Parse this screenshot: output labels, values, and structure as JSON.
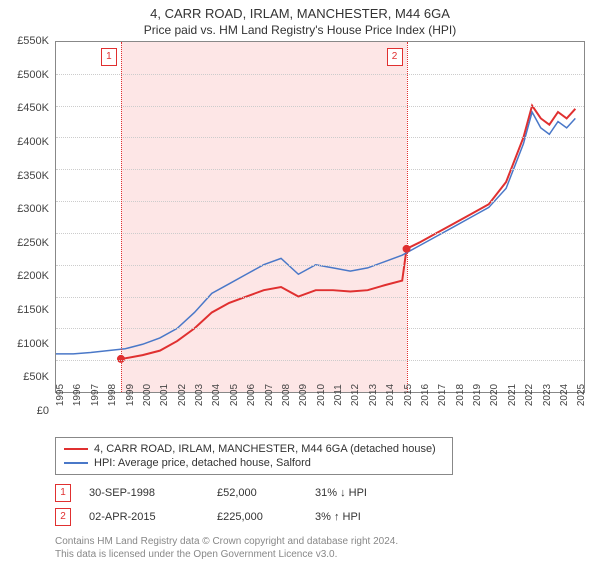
{
  "title": "4, CARR ROAD, IRLAM, MANCHESTER, M44 6GA",
  "subtitle": "Price paid vs. HM Land Registry's House Price Index (HPI)",
  "chart": {
    "type": "line",
    "background_color": "#ffffff",
    "grid_color": "#cccccc",
    "border_color": "#888888",
    "shade_color": "#fde6e6",
    "x": {
      "min": 1995.0,
      "max": 2025.5,
      "ticks": [
        1995,
        1996,
        1997,
        1998,
        1999,
        2000,
        2001,
        2002,
        2003,
        2004,
        2005,
        2006,
        2007,
        2008,
        2009,
        2010,
        2011,
        2012,
        2013,
        2014,
        2015,
        2016,
        2017,
        2018,
        2019,
        2020,
        2021,
        2022,
        2023,
        2024,
        2025
      ],
      "label_fontsize": 10,
      "label_rotation": -90
    },
    "y": {
      "min": 0,
      "max": 550000,
      "ticks": [
        0,
        50000,
        100000,
        150000,
        200000,
        250000,
        300000,
        350000,
        400000,
        450000,
        500000,
        550000
      ],
      "tick_labels": [
        "£0",
        "£50K",
        "£100K",
        "£150K",
        "£200K",
        "£250K",
        "£300K",
        "£350K",
        "£400K",
        "£450K",
        "£500K",
        "£550K"
      ],
      "label_fontsize": 11
    },
    "series": [
      {
        "name": "4, CARR ROAD, IRLAM, MANCHESTER, M44 6GA (detached house)",
        "color": "#e03030",
        "line_width": 2,
        "data": [
          [
            1998.75,
            52000
          ],
          [
            1999,
            53000
          ],
          [
            2000,
            58000
          ],
          [
            2001,
            65000
          ],
          [
            2002,
            80000
          ],
          [
            2003,
            100000
          ],
          [
            2004,
            125000
          ],
          [
            2005,
            140000
          ],
          [
            2006,
            150000
          ],
          [
            2007,
            160000
          ],
          [
            2008,
            165000
          ],
          [
            2009,
            150000
          ],
          [
            2010,
            160000
          ],
          [
            2011,
            160000
          ],
          [
            2012,
            158000
          ],
          [
            2013,
            160000
          ],
          [
            2014,
            168000
          ],
          [
            2015,
            175000
          ],
          [
            2015.25,
            225000
          ],
          [
            2016,
            235000
          ],
          [
            2017,
            250000
          ],
          [
            2018,
            265000
          ],
          [
            2019,
            280000
          ],
          [
            2020,
            295000
          ],
          [
            2021,
            330000
          ],
          [
            2022,
            400000
          ],
          [
            2022.5,
            450000
          ],
          [
            2023,
            430000
          ],
          [
            2023.5,
            420000
          ],
          [
            2024,
            440000
          ],
          [
            2024.5,
            430000
          ],
          [
            2025,
            445000
          ]
        ]
      },
      {
        "name": "HPI: Average price, detached house, Salford",
        "color": "#4a78c8",
        "line_width": 1.5,
        "data": [
          [
            1995,
            60000
          ],
          [
            1996,
            60000
          ],
          [
            1997,
            62000
          ],
          [
            1998,
            65000
          ],
          [
            1999,
            68000
          ],
          [
            2000,
            75000
          ],
          [
            2001,
            85000
          ],
          [
            2002,
            100000
          ],
          [
            2003,
            125000
          ],
          [
            2004,
            155000
          ],
          [
            2005,
            170000
          ],
          [
            2006,
            185000
          ],
          [
            2007,
            200000
          ],
          [
            2008,
            210000
          ],
          [
            2009,
            185000
          ],
          [
            2010,
            200000
          ],
          [
            2011,
            195000
          ],
          [
            2012,
            190000
          ],
          [
            2013,
            195000
          ],
          [
            2014,
            205000
          ],
          [
            2015,
            215000
          ],
          [
            2016,
            230000
          ],
          [
            2017,
            245000
          ],
          [
            2018,
            260000
          ],
          [
            2019,
            275000
          ],
          [
            2020,
            290000
          ],
          [
            2021,
            320000
          ],
          [
            2022,
            390000
          ],
          [
            2022.5,
            440000
          ],
          [
            2023,
            415000
          ],
          [
            2023.5,
            405000
          ],
          [
            2024,
            425000
          ],
          [
            2024.5,
            415000
          ],
          [
            2025,
            430000
          ]
        ]
      }
    ],
    "sale_points": [
      {
        "x": 1998.75,
        "y": 52000,
        "color": "#e03030",
        "radius": 4
      },
      {
        "x": 2015.25,
        "y": 225000,
        "color": "#e03030",
        "radius": 4
      }
    ],
    "markers": [
      {
        "id": "1",
        "x": 1998.75
      },
      {
        "id": "2",
        "x": 2015.25
      }
    ]
  },
  "legend": [
    {
      "color": "#e03030",
      "label": "4, CARR ROAD, IRLAM, MANCHESTER, M44 6GA (detached house)",
      "width": 2
    },
    {
      "color": "#4a78c8",
      "label": "HPI: Average price, detached house, Salford",
      "width": 1.5
    }
  ],
  "sales": [
    {
      "id": "1",
      "date": "30-SEP-1998",
      "price": "£52,000",
      "diff": "31% ↓ HPI"
    },
    {
      "id": "2",
      "date": "02-APR-2015",
      "price": "£225,000",
      "diff": "3% ↑ HPI"
    }
  ],
  "footer": {
    "line1": "Contains HM Land Registry data © Crown copyright and database right 2024.",
    "line2": "This data is licensed under the Open Government Licence v3.0."
  }
}
